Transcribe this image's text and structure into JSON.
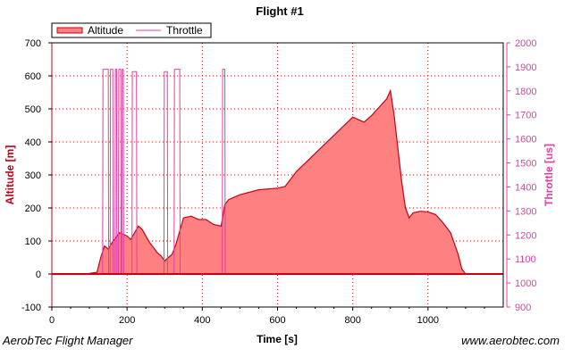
{
  "chart_data": {
    "type": "area",
    "title": "Flight #1",
    "xlabel": "Time [s]",
    "ylabel": "Altitude [m]",
    "y2label": "Throttle [us]",
    "xlim": [
      0,
      1200
    ],
    "ylim": [
      -100,
      700
    ],
    "y2lim": [
      900,
      2000
    ],
    "x_ticks": [
      0,
      200,
      400,
      600,
      800,
      1000
    ],
    "y_ticks": [
      -100,
      0,
      100,
      200,
      300,
      400,
      500,
      600,
      700
    ],
    "y2_ticks": [
      900,
      1000,
      1100,
      1200,
      1300,
      1400,
      1500,
      1600,
      1700,
      1800,
      1900,
      2000
    ],
    "grid": true,
    "legend_position": "top-left",
    "colors": {
      "altitude_line": "#c80014",
      "altitude_fill": "#ff8080",
      "throttle": "#e040a0"
    },
    "series": [
      {
        "name": "Altitude",
        "axis": "left",
        "kind": "area",
        "x": [
          0,
          90,
          120,
          130,
          140,
          150,
          160,
          170,
          180,
          190,
          200,
          210,
          220,
          230,
          240,
          250,
          260,
          270,
          280,
          290,
          300,
          310,
          320,
          330,
          340,
          350,
          370,
          390,
          410,
          430,
          450,
          460,
          470,
          500,
          550,
          600,
          620,
          650,
          700,
          750,
          800,
          830,
          850,
          870,
          890,
          900,
          910,
          920,
          930,
          940,
          950,
          960,
          980,
          1000,
          1020,
          1040,
          1060,
          1080,
          1090,
          1100
        ],
        "y": [
          0,
          0,
          5,
          50,
          85,
          75,
          95,
          110,
          125,
          120,
          115,
          105,
          125,
          145,
          135,
          115,
          95,
          80,
          65,
          55,
          40,
          50,
          60,
          90,
          130,
          170,
          175,
          165,
          165,
          150,
          145,
          210,
          225,
          240,
          255,
          260,
          265,
          310,
          365,
          420,
          475,
          460,
          480,
          505,
          530,
          555,
          480,
          380,
          280,
          200,
          170,
          185,
          190,
          188,
          180,
          155,
          125,
          60,
          15,
          0
        ]
      },
      {
        "name": "Throttle",
        "axis": "right",
        "kind": "line",
        "x": [
          0,
          135,
          136,
          150,
          151,
          155,
          156,
          162,
          163,
          168,
          169,
          172,
          173,
          177,
          178,
          183,
          184,
          186,
          187,
          190,
          191,
          213,
          214,
          225,
          226,
          298,
          299,
          307,
          308,
          325,
          326,
          340,
          341,
          453,
          454,
          460,
          461,
          1100
        ],
        "y": [
          1035,
          1035,
          1890,
          1890,
          1035,
          1035,
          1890,
          1890,
          1035,
          1035,
          1890,
          1890,
          1035,
          1035,
          1890,
          1890,
          1035,
          1035,
          1890,
          1890,
          1035,
          1035,
          1880,
          1880,
          1035,
          1035,
          1880,
          1880,
          1035,
          1035,
          1890,
          1890,
          1035,
          1035,
          1890,
          1890,
          1035,
          1035
        ]
      }
    ]
  },
  "footer": {
    "left": "AerobTec Flight Manager",
    "right": "www.aerobtec.com"
  }
}
